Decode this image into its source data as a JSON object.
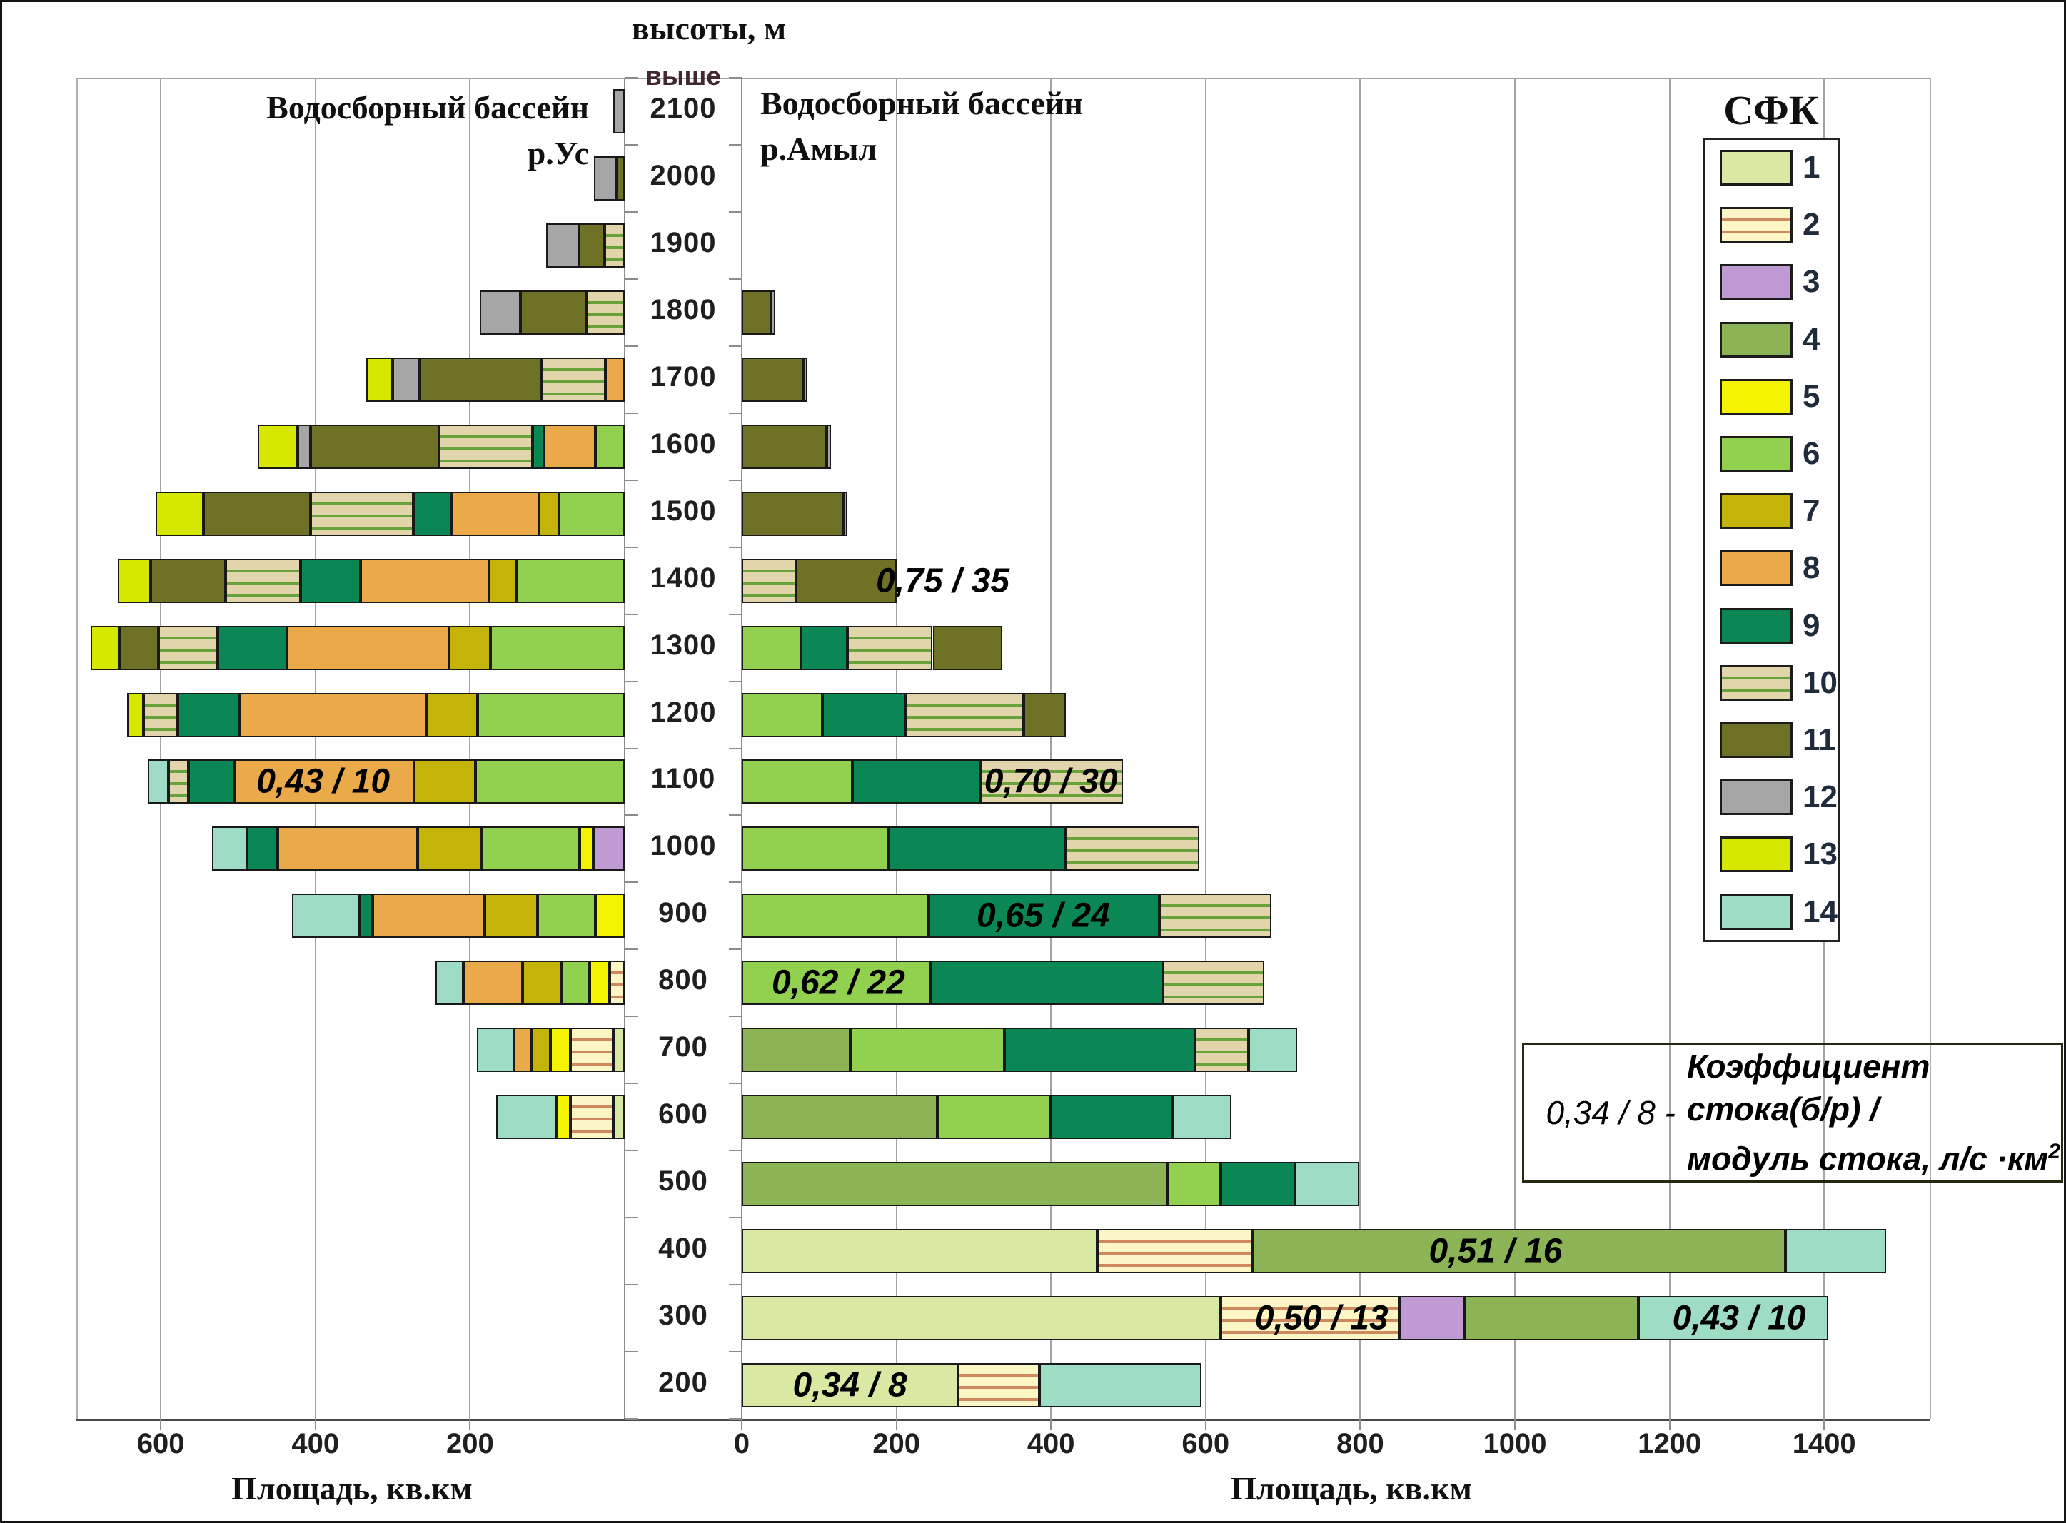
{
  "figure": {
    "header_center": "высоты, м",
    "above_label": "выше",
    "left_title_line1": "Водосборный бассейн",
    "left_title_line2": "р.Ус",
    "right_title_line1": "Водосборный бассейн",
    "right_title_line2": "р.Амыл",
    "xaxis_label_left": "Площадь, кв.км",
    "xaxis_label_right": "Площадь, кв.км",
    "legend_title": "СФК",
    "note": {
      "prefix": "0,34 / 8 -",
      "line1": "Коэффициент",
      "line2": "стока(б/р) /",
      "line3": "модуль стока, л/с ·км",
      "superscript": "2"
    }
  },
  "chart_data": {
    "type": "bar",
    "variant": "diverging-stacked-elevation-pyramid",
    "unit": "кв.км",
    "xlabel": "Площадь, кв.км",
    "ylabel": "высоты, м",
    "grid": true,
    "x_tick_interval": 200,
    "left_axis_ticks": [
      600,
      400,
      200
    ],
    "right_axis_ticks": [
      0,
      200,
      400,
      600,
      800,
      1000,
      1200,
      1400
    ],
    "elevations": [
      2100,
      2000,
      1900,
      1800,
      1700,
      1600,
      1500,
      1400,
      1300,
      1200,
      1100,
      1000,
      900,
      800,
      700,
      600,
      500,
      400,
      300,
      200
    ],
    "classes": [
      {
        "id": 1,
        "color": "#d9e8a3"
      },
      {
        "id": 2,
        "color": "#fcf6c6",
        "stripe": "#d0885f"
      },
      {
        "id": 3,
        "color": "#c09ad2"
      },
      {
        "id": 4,
        "color": "#8cb457"
      },
      {
        "id": 5,
        "color": "#f4f400"
      },
      {
        "id": 6,
        "color": "#92d050"
      },
      {
        "id": 7,
        "color": "#c4b40a"
      },
      {
        "id": 8,
        "color": "#eaaa4a"
      },
      {
        "id": 9,
        "color": "#0b8756"
      },
      {
        "id": 10,
        "color": "#e2d4ab",
        "stripe": "#68a33a"
      },
      {
        "id": 11,
        "color": "#6f7226"
      },
      {
        "id": 12,
        "color": "#a6a6a6"
      },
      {
        "id": 13,
        "color": "#d6e800"
      },
      {
        "id": 14,
        "color": "#9edcc6"
      }
    ],
    "series": [
      {
        "name": "Водосборный бассейн р.Ус",
        "side": "left",
        "rows": {
          "2100": [
            [
              12,
              15
            ]
          ],
          "2000": [
            [
              11,
              11
            ],
            [
              12,
              29
            ]
          ],
          "1900": [
            [
              10,
              26
            ],
            [
              11,
              33
            ],
            [
              12,
              43
            ]
          ],
          "1800": [
            [
              10,
              50
            ],
            [
              11,
              85
            ],
            [
              12,
              52
            ]
          ],
          "1700": [
            [
              8,
              25
            ],
            [
              10,
              83
            ],
            [
              11,
              157
            ],
            [
              12,
              35
            ],
            [
              13,
              34
            ]
          ],
          "1600": [
            [
              6,
              38
            ],
            [
              8,
              66
            ],
            [
              9,
              15
            ],
            [
              10,
              121
            ],
            [
              11,
              166
            ],
            [
              12,
              17
            ],
            [
              13,
              52
            ]
          ],
          "1500": [
            [
              6,
              85
            ],
            [
              7,
              26
            ],
            [
              8,
              112
            ],
            [
              9,
              50
            ],
            [
              10,
              133
            ],
            [
              11,
              139
            ],
            [
              13,
              62
            ]
          ],
          "1400": [
            [
              6,
              139
            ],
            [
              7,
              36
            ],
            [
              8,
              167
            ],
            [
              9,
              77
            ],
            [
              10,
              97
            ],
            [
              11,
              97
            ],
            [
              13,
              43
            ]
          ],
          "1300": [
            [
              6,
              174
            ],
            [
              7,
              53
            ],
            [
              8,
              210
            ],
            [
              9,
              89
            ],
            [
              10,
              77
            ],
            [
              11,
              51
            ],
            [
              13,
              37
            ]
          ],
          "1200": [
            [
              6,
              190
            ],
            [
              7,
              67
            ],
            [
              8,
              241
            ],
            [
              9,
              80
            ],
            [
              10,
              44
            ],
            [
              13,
              22
            ]
          ],
          "1100": [
            [
              6,
              193
            ],
            [
              7,
              79
            ],
            [
              8,
              232
            ],
            [
              9,
              60
            ],
            [
              10,
              26
            ],
            [
              14,
              27
            ]
          ],
          "1000": [
            [
              3,
              41
            ],
            [
              5,
              17
            ],
            [
              6,
              128
            ],
            [
              7,
              82
            ],
            [
              8,
              181
            ],
            [
              9,
              39
            ],
            [
              14,
              46
            ]
          ],
          "900": [
            [
              5,
              38
            ],
            [
              6,
              75
            ],
            [
              7,
              68
            ],
            [
              8,
              145
            ],
            [
              9,
              17
            ],
            [
              14,
              87
            ]
          ],
          "800": [
            [
              2,
              19
            ],
            [
              5,
              26
            ],
            [
              6,
              36
            ],
            [
              7,
              51
            ],
            [
              8,
              77
            ],
            [
              14,
              36
            ]
          ],
          "700": [
            [
              1,
              15
            ],
            [
              2,
              55
            ],
            [
              5,
              26
            ],
            [
              7,
              25
            ],
            [
              8,
              22
            ],
            [
              14,
              48
            ]
          ],
          "600": [
            [
              1,
              15
            ],
            [
              2,
              55
            ],
            [
              5,
              19
            ],
            [
              14,
              77
            ]
          ],
          "500": [],
          "400": [],
          "300": [],
          "200": []
        }
      },
      {
        "name": "Водосборный бассейн р.Амыл",
        "side": "right",
        "rows": {
          "2100": [],
          "2000": [],
          "1900": [],
          "1800": [
            [
              11,
              38
            ],
            [
              12,
              5
            ]
          ],
          "1700": [
            [
              11,
              80
            ],
            [
              12,
              5
            ]
          ],
          "1600": [
            [
              11,
              110
            ],
            [
              12,
              5
            ]
          ],
          "1500": [
            [
              11,
              132
            ],
            [
              12,
              5
            ]
          ],
          "1400": [
            [
              10,
              70
            ],
            [
              11,
              130
            ]
          ],
          "1300": [
            [
              6,
              77
            ],
            [
              9,
              60
            ],
            [
              10,
              110
            ],
            [
              11,
              90
            ]
          ],
          "1200": [
            [
              6,
              104
            ],
            [
              9,
              108
            ],
            [
              10,
              153
            ],
            [
              11,
              54
            ]
          ],
          "1100": [
            [
              6,
              143
            ],
            [
              9,
              165
            ],
            [
              10,
              185
            ]
          ],
          "1000": [
            [
              6,
              190
            ],
            [
              9,
              229
            ],
            [
              10,
              173
            ]
          ],
          "900": [
            [
              6,
              242
            ],
            [
              9,
              298
            ],
            [
              10,
              145
            ]
          ],
          "800": [
            [
              6,
              245
            ],
            [
              9,
              300
            ],
            [
              10,
              131
            ]
          ],
          "700": [
            [
              4,
              140
            ],
            [
              6,
              200
            ],
            [
              9,
              246
            ],
            [
              10,
              70
            ],
            [
              14,
              62
            ]
          ],
          "600": [
            [
              4,
              253
            ],
            [
              6,
              147
            ],
            [
              9,
              158
            ],
            [
              14,
              75
            ]
          ],
          "500": [
            [
              4,
              550
            ],
            [
              6,
              70
            ],
            [
              9,
              96
            ],
            [
              14,
              83
            ]
          ],
          "400": [
            [
              1,
              460
            ],
            [
              2,
              200
            ],
            [
              4,
              690
            ],
            [
              14,
              130
            ]
          ],
          "300": [
            [
              1,
              620
            ],
            [
              2,
              230
            ],
            [
              3,
              85
            ],
            [
              4,
              225
            ],
            [
              14,
              245
            ]
          ],
          "200": [
            [
              1,
              280
            ],
            [
              2,
              105
            ],
            [
              14,
              210
            ]
          ]
        }
      }
    ],
    "annotations": [
      {
        "side": "left",
        "elevation": 1100,
        "center_units": 390,
        "text": "0,43 / 10"
      },
      {
        "side": "right",
        "elevation": 1400,
        "center_units": 260,
        "text": "0,75 / 35"
      },
      {
        "side": "right",
        "elevation": 1100,
        "center_units": 400,
        "text": "0,70 / 30"
      },
      {
        "side": "right",
        "elevation": 900,
        "center_units": 390,
        "text": "0,65 / 24"
      },
      {
        "side": "right",
        "elevation": 800,
        "center_units": 125,
        "text": "0,62 / 22"
      },
      {
        "side": "right",
        "elevation": 400,
        "center_units": 975,
        "text": "0,51 / 16"
      },
      {
        "side": "right",
        "elevation": 300,
        "center_units": 750,
        "text": "0,50 / 13"
      },
      {
        "side": "right",
        "elevation": 300,
        "center_units": 1290,
        "text": "0,43 / 10"
      },
      {
        "side": "right",
        "elevation": 200,
        "center_units": 140,
        "text": "0,34 / 8"
      }
    ]
  }
}
